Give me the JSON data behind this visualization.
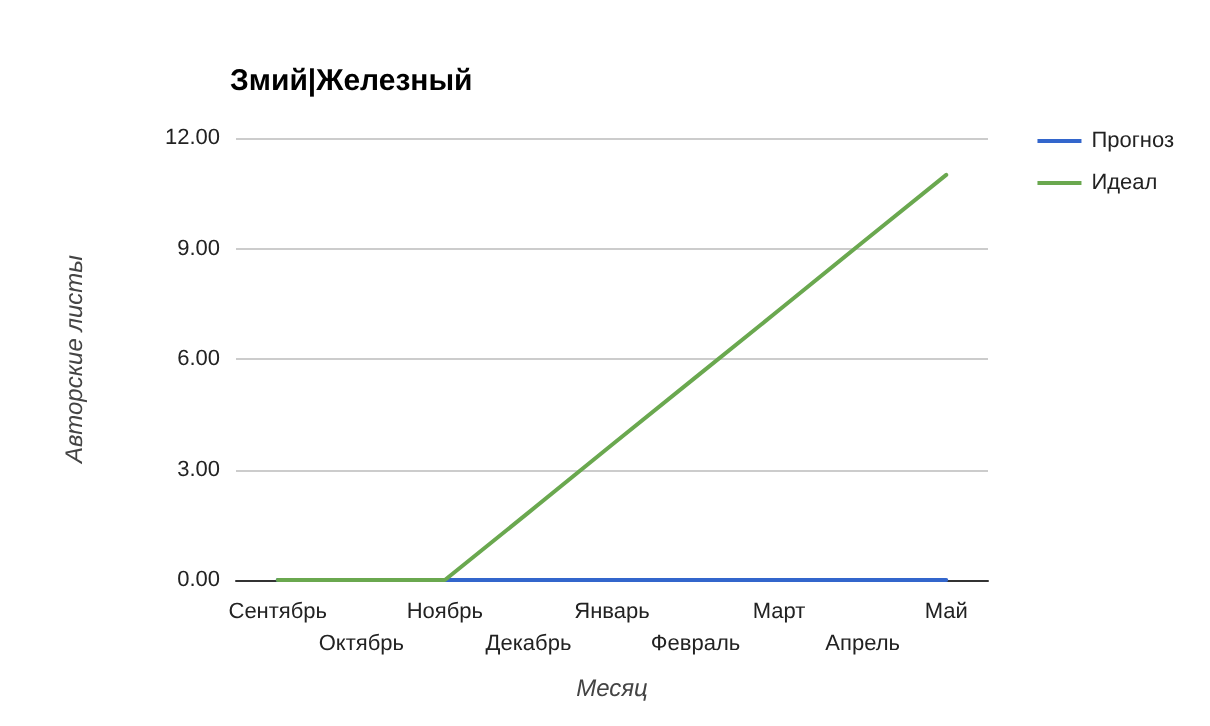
{
  "chart_data": {
    "type": "line",
    "title": "Змий|Железный",
    "xlabel": "Месяц",
    "ylabel": "Авторские листы",
    "categories": [
      "Сентябрь",
      "Октябрь",
      "Ноябрь",
      "Декабрь",
      "Январь",
      "Февраль",
      "Март",
      "Апрель",
      "Май"
    ],
    "series": [
      {
        "name": "Прогноз",
        "color": "#3366cc",
        "values": [
          0,
          0,
          0,
          0,
          0,
          0,
          0,
          0,
          0
        ]
      },
      {
        "name": "Идеал",
        "color": "#6aa84f",
        "values": [
          0,
          0,
          0,
          1.83,
          3.67,
          5.5,
          7.33,
          9.17,
          11
        ]
      }
    ],
    "ylim": [
      0,
      12
    ],
    "yticks": [
      {
        "value": 0,
        "label": "0.00"
      },
      {
        "value": 3,
        "label": "3.00"
      },
      {
        "value": 6,
        "label": "6.00"
      },
      {
        "value": 9,
        "label": "9.00"
      },
      {
        "value": 12,
        "label": "12.00"
      }
    ],
    "grid": "y",
    "legend": "right",
    "marker": "none",
    "line_style": "solid"
  }
}
